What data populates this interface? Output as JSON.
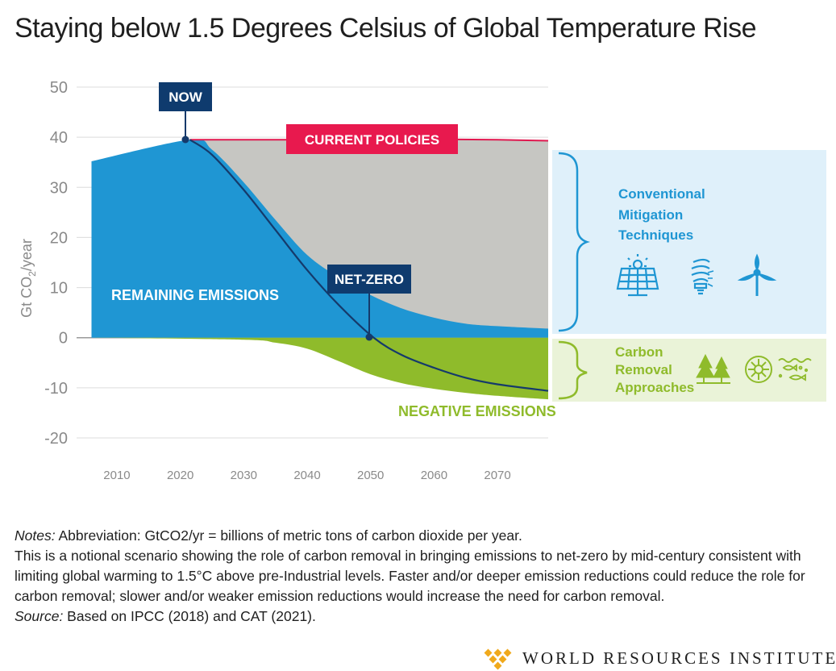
{
  "title": "Staying below 1.5 Degrees Celsius of Global Temperature Rise",
  "colors": {
    "remaining": "#1f96d3",
    "current_policies_fill": "#c6c6c2",
    "negative": "#8fbb2b",
    "current_policies_line": "#e0184f",
    "pathway_line": "#153a6b",
    "callout_box": "#0f3b6e",
    "current_policies_box": "#e8194e",
    "conventional_panel": "#dff0fa",
    "removal_panel": "#eaf3d8",
    "bracket_blue": "#1f96d3",
    "bracket_green": "#8fbb2b",
    "logo": "#f0a91b"
  },
  "chart_data": {
    "type": "area",
    "title": "Staying below 1.5 Degrees Celsius of Global Temperature Rise",
    "xlabel": "",
    "ylabel": "Gt CO2/year",
    "ylabel_parts": {
      "pre": "Gt CO",
      "sub": "2",
      "post": "/year"
    },
    "xlim": [
      2006,
      2078
    ],
    "ylim": [
      -20,
      50
    ],
    "x_ticks": [
      2010,
      2020,
      2030,
      2040,
      2050,
      2060,
      2070
    ],
    "y_ticks": [
      50,
      40,
      30,
      20,
      10,
      0,
      -10,
      -20
    ],
    "y_tick_labels": [
      "50",
      "40",
      "30",
      "20",
      "10",
      "0",
      "-10",
      "-20"
    ],
    "series": [
      {
        "name": "Current policies",
        "x": [
          2006,
          2021.5,
          2030,
          2040,
          2050,
          2060,
          2070,
          2078
        ],
        "values": [
          35.2,
          39.5,
          39.5,
          39.5,
          39.6,
          39.6,
          39.5,
          39.3
        ]
      },
      {
        "name": "Remaining emissions",
        "x": [
          2006,
          2021.5,
          2025,
          2030,
          2035,
          2040,
          2045,
          2050,
          2055,
          2060,
          2065,
          2070,
          2078
        ],
        "values": [
          35.2,
          39.5,
          37.5,
          31,
          23.5,
          16.5,
          12,
          8.5,
          5.8,
          4,
          2.8,
          2.3,
          1.8
        ]
      },
      {
        "name": "Net emissions pathway",
        "x": [
          2021.5,
          2025,
          2030,
          2035,
          2040,
          2045,
          2050.5,
          2055,
          2060,
          2065,
          2070,
          2078
        ],
        "values": [
          39.5,
          36.5,
          29.5,
          21.5,
          13.5,
          6.5,
          0,
          -3.5,
          -6,
          -8,
          -9.3,
          -10.6
        ]
      },
      {
        "name": "Negative emissions",
        "x": [
          2006,
          2030,
          2035,
          2040,
          2045,
          2050,
          2055,
          2060,
          2065,
          2070,
          2078
        ],
        "values": [
          0,
          -0.4,
          -1.0,
          -2.2,
          -4.7,
          -7.3,
          -9.1,
          -10.2,
          -11.0,
          -11.6,
          -12.3
        ]
      }
    ],
    "callouts": {
      "now": "NOW",
      "net_zero": "NET-ZERO",
      "current_policies": "CURRENT POLICIES"
    },
    "area_labels": {
      "remaining": "REMAINING EMISSIONS",
      "negative": "NEGATIVE EMISSIONS"
    },
    "side_panels": {
      "conventional": [
        "Conventional",
        "Mitigation",
        "Techniques"
      ],
      "removal": [
        "Carbon",
        "Removal",
        "Approaches"
      ]
    },
    "icons": {
      "conventional": [
        "solar-panel-icon",
        "light-bulb-icon",
        "wind-turbine-icon"
      ],
      "removal": [
        "trees-icon",
        "soil-disc-icon",
        "ocean-fish-icon"
      ]
    }
  },
  "notes": {
    "notes_label": "Notes:",
    "abbreviation": " Abbreviation: GtCO2/yr = billions of metric tons of carbon dioxide per year.",
    "body": "This is a notional scenario showing the role of carbon removal in bringing emissions to net-zero by mid-century consistent with limiting global warming to 1.5°C above pre-Industrial levels. Faster and/or deeper emission reductions could reduce the role for carbon removal; slower and/or weaker emission reductions would increase the need for carbon removal.",
    "source_label": "Source:",
    "source": " Based on IPCC (2018) and CAT (2021)."
  },
  "logo": {
    "text": "WORLD RESOURCES INSTITUTE",
    "icon": "wri-logo-icon"
  }
}
